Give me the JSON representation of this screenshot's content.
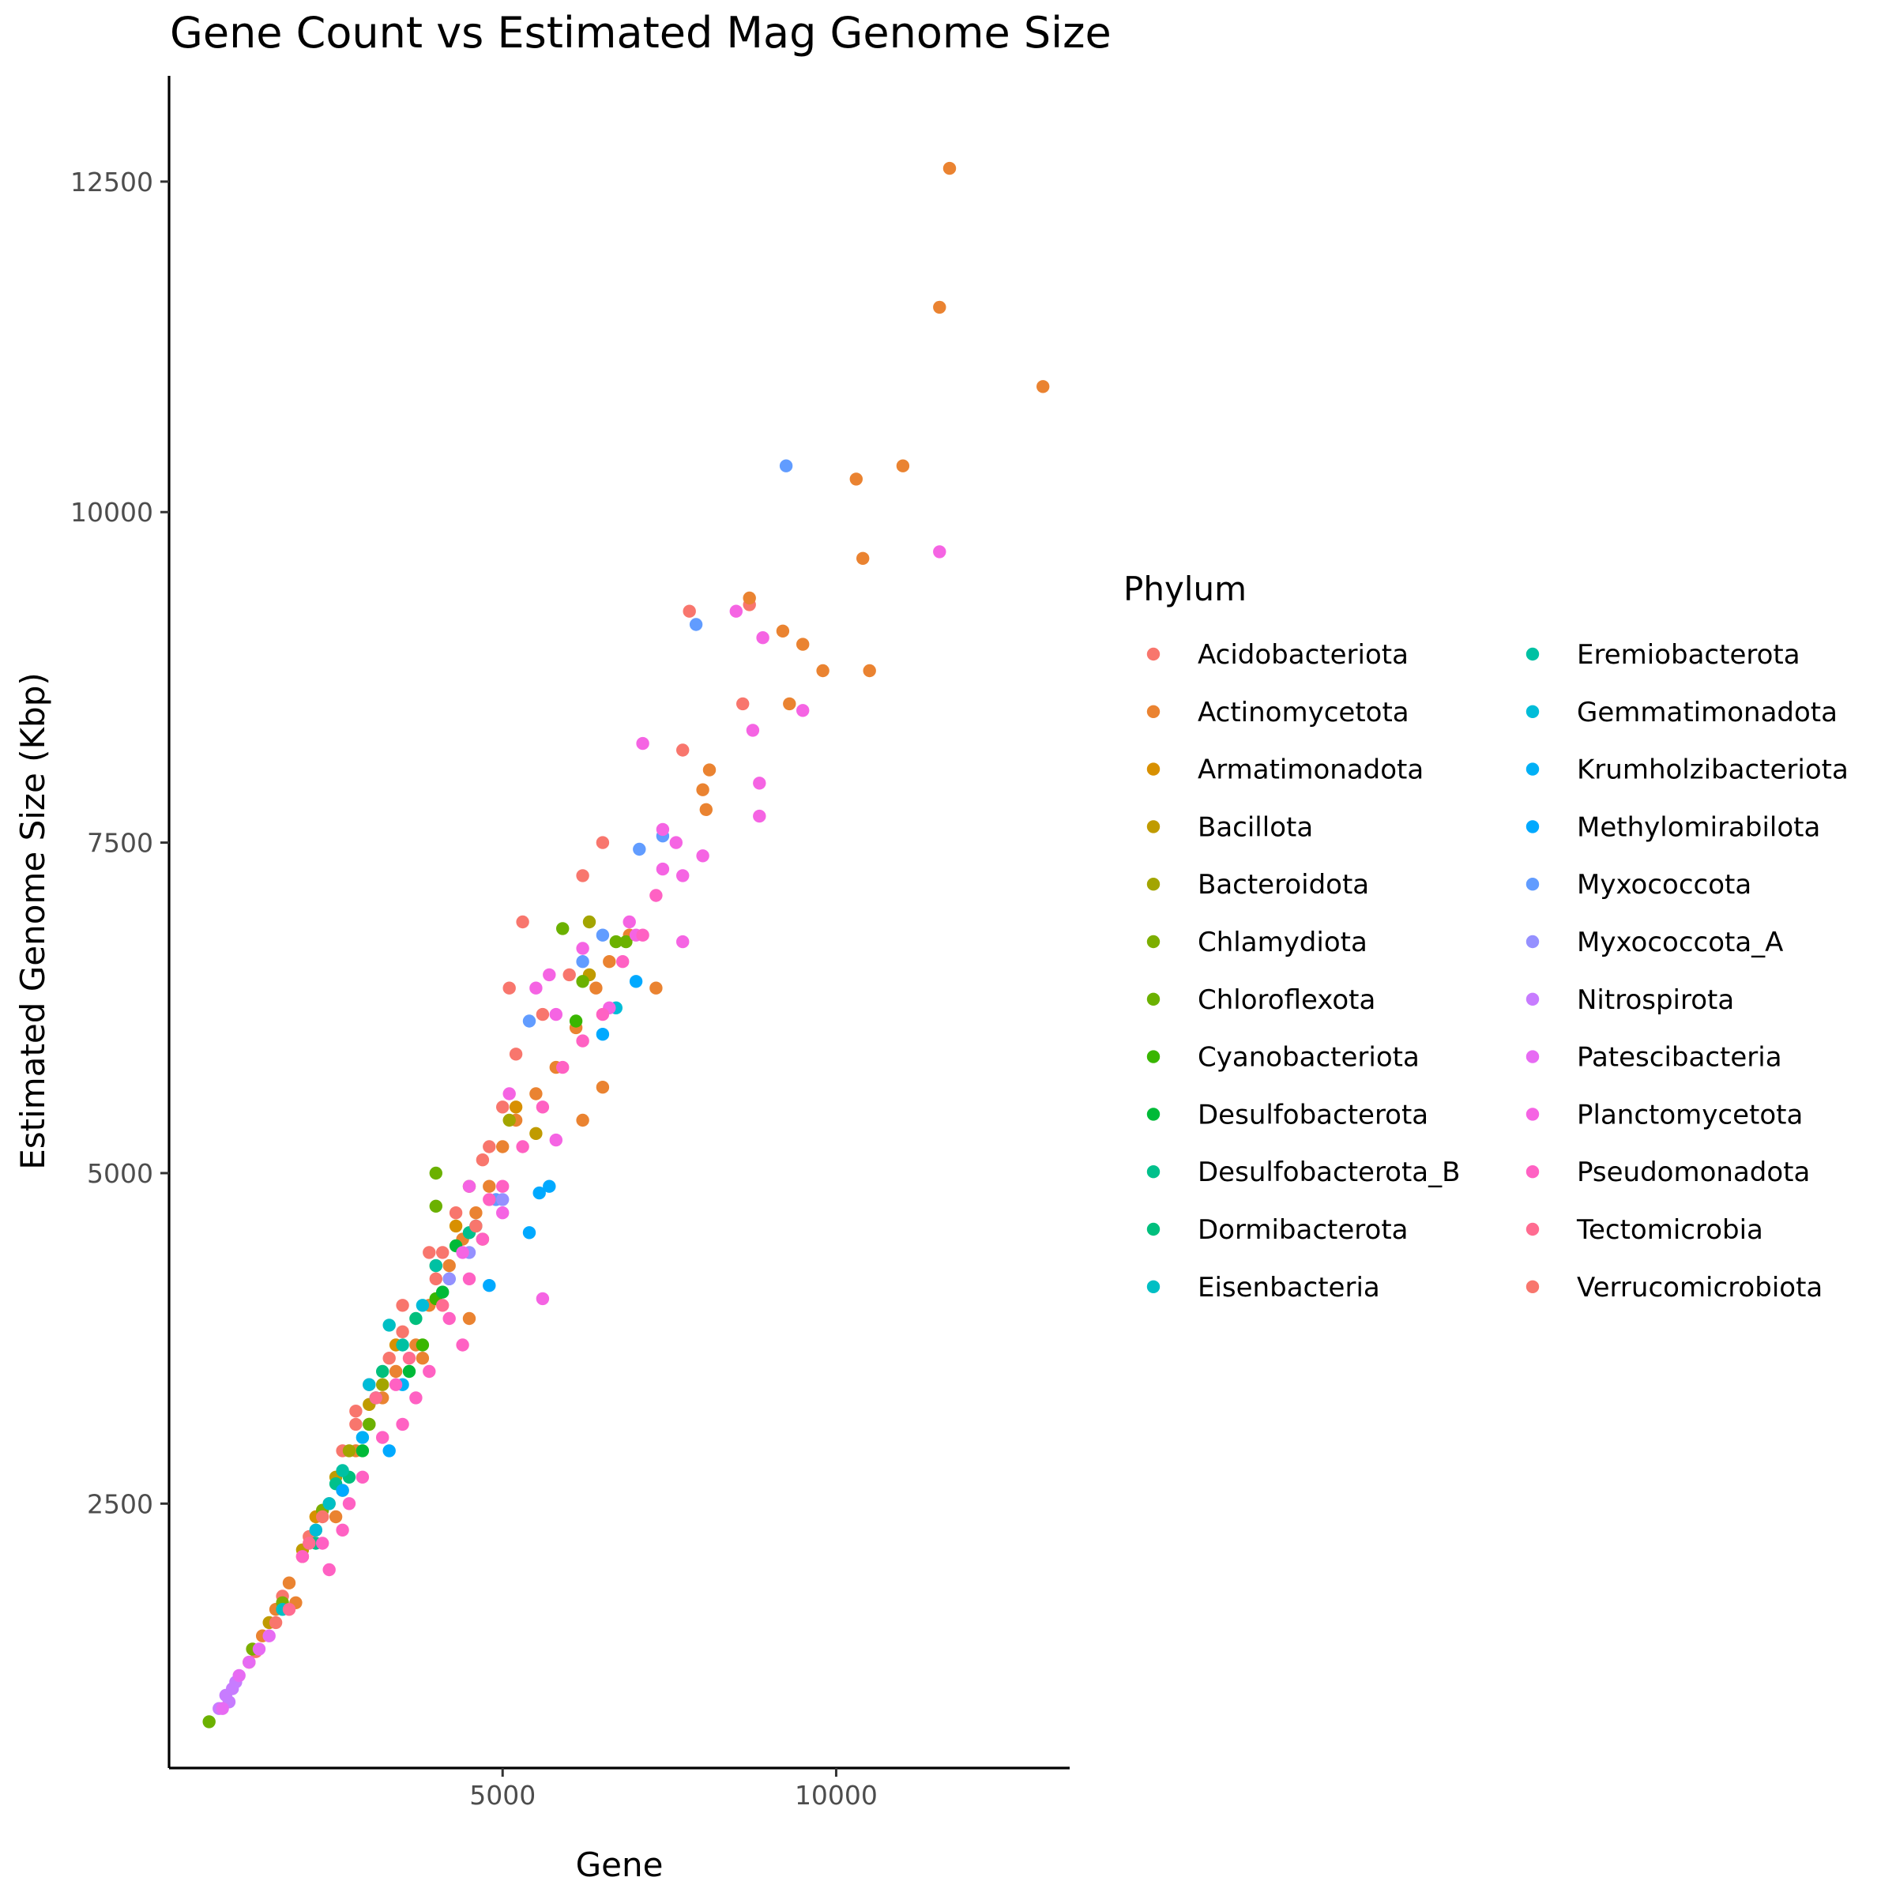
{
  "chart_data": {
    "type": "scatter",
    "title": "Gene Count vs Estimated Mag Genome Size",
    "xlabel": "Gene",
    "ylabel": "Estimated Genome Size (Kbp)",
    "xlim": [
      0,
      13500
    ],
    "ylim": [
      500,
      13300
    ],
    "xticks": [
      5000,
      10000
    ],
    "yticks": [
      2500,
      5000,
      7500,
      10000,
      12500
    ],
    "grid": false,
    "legend": {
      "title": "Phylum",
      "placement": "right",
      "columns": 2
    },
    "series": [
      {
        "name": "Acidobacteriota",
        "color": "#F8766D",
        "points": [
          [
            1300,
            1380
          ],
          [
            1700,
            1800
          ],
          [
            2100,
            2250
          ],
          [
            2600,
            2900
          ],
          [
            3000,
            3400
          ],
          [
            3500,
            3800
          ],
          [
            3900,
            4400
          ],
          [
            4300,
            4700
          ],
          [
            4700,
            5100
          ],
          [
            5000,
            5500
          ],
          [
            5200,
            5900
          ],
          [
            5600,
            6200
          ],
          [
            6000,
            6500
          ],
          [
            5300,
            6900
          ],
          [
            6500,
            7500
          ],
          [
            6200,
            7250
          ],
          [
            7800,
            9250
          ],
          [
            7700,
            8200
          ],
          [
            8600,
            8550
          ],
          [
            8700,
            9300
          ],
          [
            4800,
            5200
          ],
          [
            5100,
            6400
          ],
          [
            2800,
            3200
          ],
          [
            3300,
            3600
          ],
          [
            4000,
            4200
          ]
        ]
      },
      {
        "name": "Actinomycetota",
        "color": "#EA8331",
        "points": [
          [
            11700,
            12600
          ],
          [
            11550,
            11550
          ],
          [
            13100,
            10950
          ],
          [
            11000,
            10350
          ],
          [
            10300,
            10250
          ],
          [
            10400,
            9650
          ],
          [
            10500,
            8800
          ],
          [
            9800,
            8800
          ],
          [
            9500,
            9000
          ],
          [
            9200,
            9100
          ],
          [
            9300,
            8550
          ],
          [
            8700,
            9350
          ],
          [
            8000,
            7900
          ],
          [
            8100,
            8050
          ],
          [
            8050,
            7750
          ],
          [
            7300,
            6400
          ],
          [
            6900,
            6800
          ],
          [
            6600,
            6600
          ],
          [
            6400,
            6400
          ],
          [
            6100,
            6100
          ],
          [
            5800,
            5800
          ],
          [
            5500,
            5600
          ],
          [
            5200,
            5400
          ],
          [
            5000,
            5200
          ],
          [
            4800,
            4900
          ],
          [
            4600,
            4700
          ],
          [
            4400,
            4500
          ],
          [
            4200,
            4300
          ],
          [
            3900,
            4000
          ],
          [
            3700,
            3700
          ],
          [
            3400,
            3500
          ],
          [
            3200,
            3300
          ],
          [
            3000,
            3100
          ],
          [
            2800,
            2900
          ],
          [
            2600,
            2600
          ],
          [
            2400,
            2500
          ],
          [
            2200,
            2300
          ],
          [
            2000,
            2100
          ],
          [
            1800,
            1900
          ],
          [
            1600,
            1700
          ],
          [
            1400,
            1500
          ],
          [
            1200,
            1300
          ],
          [
            6500,
            5650
          ],
          [
            6200,
            5400
          ],
          [
            4500,
            3900
          ],
          [
            3800,
            3600
          ],
          [
            2500,
            2400
          ],
          [
            1900,
            1750
          ]
        ]
      },
      {
        "name": "Armatimonadota",
        "color": "#D89000",
        "points": [
          [
            3400,
            3700
          ],
          [
            4300,
            4600
          ],
          [
            2200,
            2400
          ],
          [
            5200,
            5500
          ]
        ]
      },
      {
        "name": "Bacillota",
        "color": "#C09B00",
        "points": [
          [
            1500,
            1600
          ],
          [
            2000,
            2150
          ],
          [
            2500,
            2700
          ],
          [
            3000,
            3250
          ],
          [
            4000,
            4300
          ],
          [
            5500,
            5300
          ],
          [
            6300,
            6500
          ],
          [
            4700,
            4500
          ]
        ]
      },
      {
        "name": "Bacteroidota",
        "color": "#A3A500",
        "points": [
          [
            3200,
            3400
          ],
          [
            4500,
            4900
          ],
          [
            5100,
            5400
          ],
          [
            6300,
            6900
          ],
          [
            2700,
            2900
          ]
        ]
      },
      {
        "name": "Chlamydiota",
        "color": "#7CAE00",
        "points": [
          [
            1250,
            1400
          ],
          [
            1700,
            1750
          ],
          [
            2300,
            2450
          ]
        ]
      },
      {
        "name": "Chloroflexota",
        "color": "#6BB100",
        "points": [
          [
            600,
            850
          ],
          [
            4000,
            5000
          ],
          [
            5900,
            6850
          ],
          [
            6200,
            6450
          ],
          [
            6700,
            6750
          ],
          [
            6850,
            6750
          ],
          [
            4000,
            4750
          ],
          [
            3000,
            3100
          ]
        ]
      },
      {
        "name": "Cyanobacteriota",
        "color": "#39B600",
        "points": [
          [
            4000,
            4050
          ],
          [
            3800,
            3700
          ],
          [
            6100,
            6150
          ]
        ]
      },
      {
        "name": "Desulfobacterota",
        "color": "#00BA38",
        "points": [
          [
            4100,
            4100
          ],
          [
            4300,
            4450
          ],
          [
            2900,
            2900
          ],
          [
            3600,
            3500
          ]
        ]
      },
      {
        "name": "Desulfobacterota_B",
        "color": "#00C08B",
        "points": [
          [
            2500,
            2650
          ],
          [
            3100,
            3300
          ],
          [
            4500,
            4550
          ],
          [
            2200,
            2200
          ]
        ]
      },
      {
        "name": "Dormibacterota",
        "color": "#00BF7D",
        "points": [
          [
            3200,
            3500
          ],
          [
            3700,
            3900
          ],
          [
            2700,
            2700
          ]
        ]
      },
      {
        "name": "Eisenbacteria",
        "color": "#00BFC4",
        "points": [
          [
            1700,
            1700
          ],
          [
            2400,
            2500
          ],
          [
            3300,
            3850
          ],
          [
            4600,
            4600
          ]
        ]
      },
      {
        "name": "Eremiobacterota",
        "color": "#00C1A3",
        "points": [
          [
            3500,
            3700
          ],
          [
            4000,
            4300
          ],
          [
            2600,
            2750
          ]
        ]
      },
      {
        "name": "Gemmatimonadota",
        "color": "#00BCD8",
        "points": [
          [
            2200,
            2300
          ],
          [
            3000,
            3400
          ],
          [
            3800,
            4000
          ],
          [
            6700,
            6250
          ]
        ]
      },
      {
        "name": "Krumholzibacteriota",
        "color": "#00B0F6",
        "points": [
          [
            3500,
            3400
          ],
          [
            2900,
            3000
          ],
          [
            4200,
            4200
          ]
        ]
      },
      {
        "name": "Methylomirabilota",
        "color": "#00A9FF",
        "points": [
          [
            5700,
            4900
          ],
          [
            5550,
            4850
          ],
          [
            5400,
            4550
          ],
          [
            4800,
            4150
          ],
          [
            7000,
            6450
          ],
          [
            6500,
            6050
          ],
          [
            3300,
            2900
          ],
          [
            2600,
            2600
          ]
        ]
      },
      {
        "name": "Myxococcota",
        "color": "#619CFF",
        "points": [
          [
            9250,
            10350
          ],
          [
            7900,
            9150
          ],
          [
            7400,
            7550
          ],
          [
            7050,
            7450
          ],
          [
            6200,
            6600
          ],
          [
            5400,
            6150
          ],
          [
            6500,
            6800
          ],
          [
            4900,
            4800
          ]
        ]
      },
      {
        "name": "Myxococcota_A",
        "color": "#9590FF",
        "points": [
          [
            4500,
            4400
          ],
          [
            4200,
            4200
          ],
          [
            5000,
            4800
          ]
        ]
      },
      {
        "name": "Nitrospirota",
        "color": "#C77CFF",
        "points": [
          [
            750,
            950
          ],
          [
            850,
            1050
          ],
          [
            1000,
            1150
          ],
          [
            950,
            1100
          ],
          [
            900,
            1000
          ]
        ]
      },
      {
        "name": "Patescibacteria",
        "color": "#E76BF3",
        "points": [
          [
            1050,
            1200
          ],
          [
            1200,
            1300
          ],
          [
            1350,
            1400
          ],
          [
            800,
            950
          ],
          [
            1500,
            1500
          ]
        ]
      },
      {
        "name": "Planctomycetota",
        "color": "#F564E3",
        "points": [
          [
            11550,
            9700
          ],
          [
            8900,
            9050
          ],
          [
            8500,
            9250
          ],
          [
            9500,
            8500
          ],
          [
            8750,
            8350
          ],
          [
            7100,
            8250
          ],
          [
            8850,
            7950
          ],
          [
            8850,
            7700
          ],
          [
            8000,
            7400
          ],
          [
            7400,
            7600
          ],
          [
            7600,
            7500
          ],
          [
            7700,
            7250
          ],
          [
            7400,
            7300
          ],
          [
            6900,
            6900
          ],
          [
            7000,
            6800
          ],
          [
            6200,
            6700
          ],
          [
            5700,
            6500
          ],
          [
            5500,
            6400
          ],
          [
            5100,
            5600
          ],
          [
            5600,
            4050
          ],
          [
            7700,
            6750
          ],
          [
            6600,
            6250
          ],
          [
            5800,
            6200
          ],
          [
            4500,
            4900
          ],
          [
            5800,
            5250
          ],
          [
            5000,
            4700
          ],
          [
            4400,
            4400
          ]
        ]
      },
      {
        "name": "Pseudomonadota",
        "color": "#FF61C3",
        "points": [
          [
            2000,
            2100
          ],
          [
            2300,
            2200
          ],
          [
            2600,
            2300
          ],
          [
            2400,
            2000
          ],
          [
            2900,
            2700
          ],
          [
            3200,
            3000
          ],
          [
            3500,
            3100
          ],
          [
            3900,
            3500
          ],
          [
            4200,
            3900
          ],
          [
            4500,
            4200
          ],
          [
            4700,
            4500
          ],
          [
            5000,
            4900
          ],
          [
            5300,
            5200
          ],
          [
            5600,
            5500
          ],
          [
            5900,
            5800
          ],
          [
            6200,
            6000
          ],
          [
            6500,
            6200
          ],
          [
            6800,
            6600
          ],
          [
            7100,
            6800
          ],
          [
            7300,
            7100
          ],
          [
            4400,
            3700
          ],
          [
            3700,
            3300
          ],
          [
            2700,
            2500
          ],
          [
            3400,
            3400
          ],
          [
            4800,
            4800
          ]
        ]
      },
      {
        "name": "Tectomicrobia",
        "color": "#FF6C91",
        "points": [
          [
            3100,
            3300
          ],
          [
            3600,
            3600
          ],
          [
            2100,
            2200
          ],
          [
            4100,
            4000
          ],
          [
            1800,
            1700
          ]
        ]
      },
      {
        "name": "Verrucomicrobiota",
        "color": "#F8766D",
        "points": [
          [
            3500,
            4000
          ],
          [
            4100,
            4400
          ],
          [
            2800,
            3100
          ],
          [
            2300,
            2400
          ],
          [
            1600,
            1600
          ],
          [
            4600,
            4600
          ]
        ]
      }
    ]
  }
}
